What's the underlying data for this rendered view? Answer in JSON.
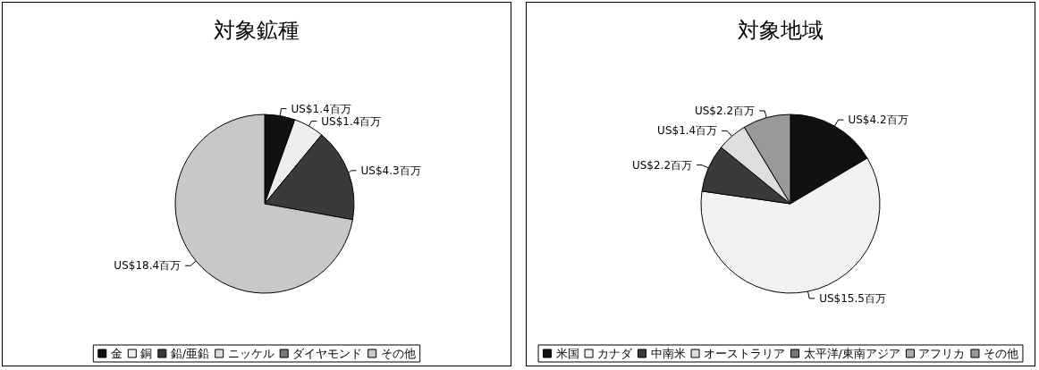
{
  "chart_data": [
    {
      "type": "pie",
      "title": "対象鉱種",
      "categories": [
        "金",
        "銅",
        "鉛/亜鉛",
        "ニッケル",
        "ダイヤモンド",
        "その他"
      ],
      "values": [
        1.4,
        1.4,
        4.3,
        0,
        0,
        18.4
      ],
      "value_labels": [
        "US$1.4百万",
        "US$1.4百万",
        "US$4.3百万",
        null,
        null,
        "US$18.4百万"
      ],
      "colors": [
        "#111111",
        "#eeeeee",
        "#3a3a3a",
        "#dddddd",
        "#777777",
        "#c8c8c8"
      ],
      "legend": "bottom"
    },
    {
      "type": "pie",
      "title": "対象地域",
      "categories": [
        "米国",
        "カナダ",
        "中南米",
        "オーストラリア",
        "太平洋/東南アジア",
        "アフリカ",
        "その他"
      ],
      "values": [
        4.2,
        15.5,
        2.2,
        1.4,
        0,
        0,
        2.2
      ],
      "value_labels": [
        "US$4.2百万",
        "US$15.5百万",
        "US$2.2百万",
        "US$1.4百万",
        null,
        null,
        "US$2.2百万"
      ],
      "colors": [
        "#111111",
        "#f2f2f2",
        "#3a3a3a",
        "#dedede",
        "#777777",
        "#aaaaaa",
        "#999999"
      ],
      "legend": "bottom"
    }
  ]
}
